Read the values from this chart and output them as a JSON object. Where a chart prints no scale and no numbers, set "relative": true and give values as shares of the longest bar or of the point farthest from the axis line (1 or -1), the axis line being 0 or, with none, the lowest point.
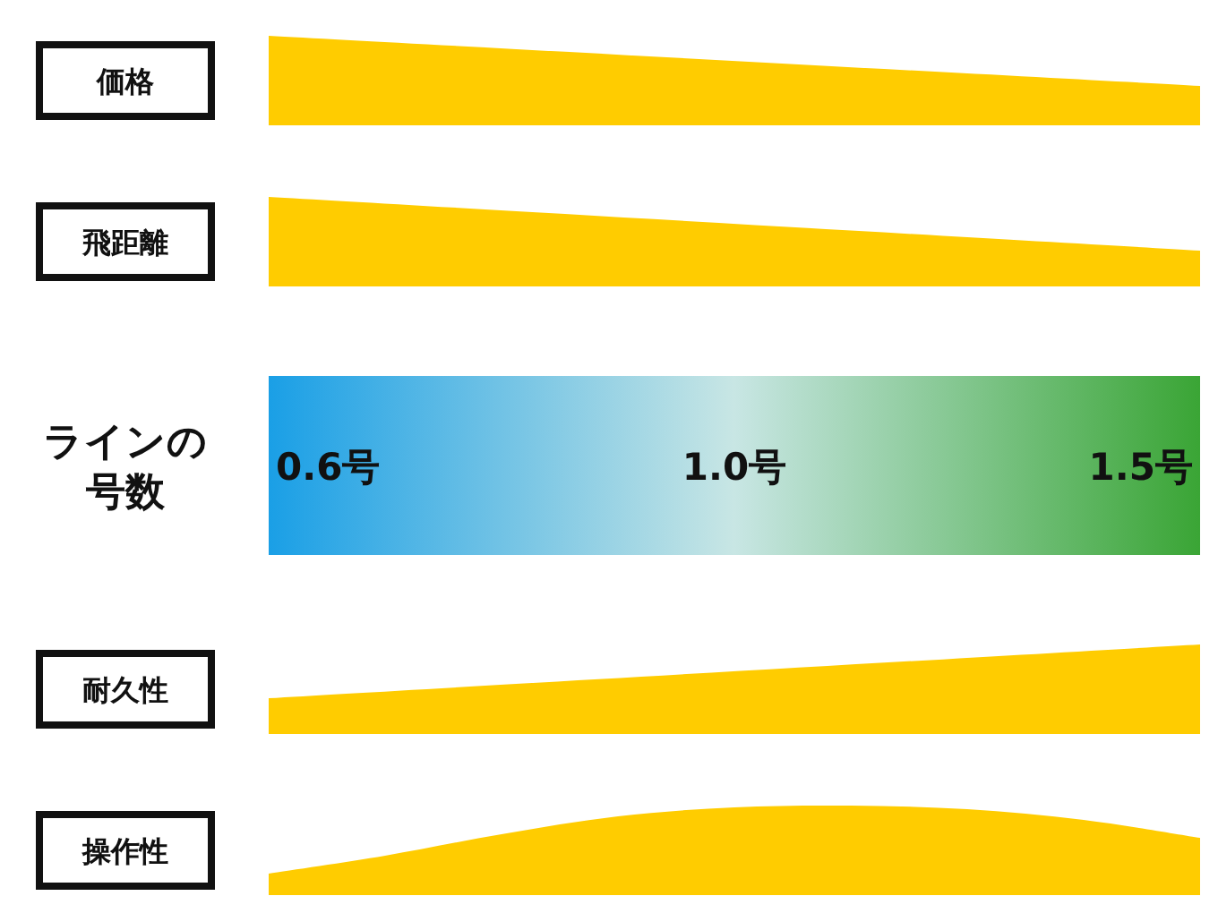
{
  "chart_data": [
    {
      "type": "area",
      "title": "価格",
      "categories": [
        null,
        null
      ],
      "values": [
        1,
        0.44
      ],
      "color": "#ffcc00",
      "relative": true
    },
    {
      "type": "area",
      "title": "飛距離",
      "categories": [
        null,
        null
      ],
      "values": [
        1,
        0.4
      ],
      "color": "#ffcc00",
      "relative": true
    },
    {
      "type": "other",
      "title": "ラインの号数",
      "annotations": [
        "0.6号",
        "1.0号",
        "1.5号"
      ]
    },
    {
      "type": "area",
      "title": "耐久性",
      "categories": [
        null,
        null
      ],
      "values": [
        0.4,
        1
      ],
      "color": "#ffcc00",
      "relative": true
    },
    {
      "type": "area",
      "title": "操作性",
      "categories": [
        null,
        null,
        null,
        null,
        null,
        null,
        null,
        null,
        null
      ],
      "values": [
        0.24,
        0.44,
        0.68,
        0.88,
        0.98,
        1,
        0.96,
        0.84,
        0.64
      ],
      "color": "#ffcc00",
      "relative": true
    }
  ]
}
